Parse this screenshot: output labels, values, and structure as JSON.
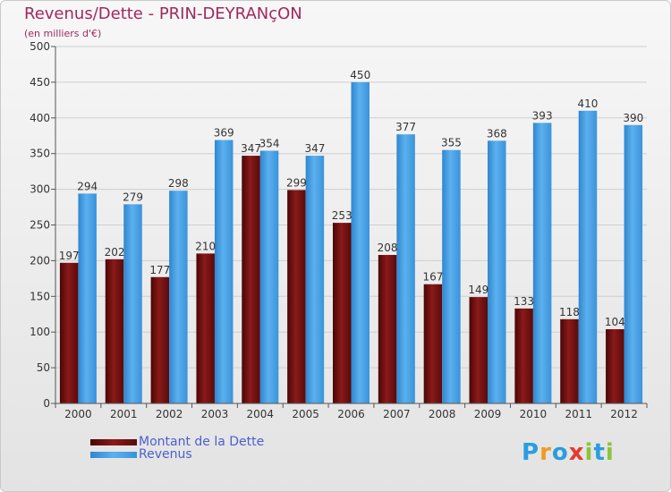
{
  "header": {
    "title": "Revenus/Dette - PRIN-DEYRANçON",
    "subtitle": "(en milliers d'€)"
  },
  "legend": {
    "items": [
      {
        "label": "Montant de la Dette",
        "color": "#6e1010"
      },
      {
        "label": "Revenus",
        "color": "#3e9ae2"
      }
    ]
  },
  "brand": {
    "text": "Proxiti",
    "letters": [
      {
        "ch": "P",
        "color": "#2a9de0"
      },
      {
        "ch": "r",
        "color": "#f29a1e"
      },
      {
        "ch": "o",
        "color": "#2a9de0"
      },
      {
        "ch": "x",
        "color": "#e63a2e"
      },
      {
        "ch": "i",
        "color": "#8cc43c"
      },
      {
        "ch": "t",
        "color": "#2a9de0"
      },
      {
        "ch": "i",
        "color": "#8cc43c"
      }
    ]
  },
  "chart_data": {
    "type": "bar",
    "title": "Revenus/Dette - PRIN-DEYRANçON",
    "subtitle": "(en milliers d'€)",
    "categories": [
      "2000",
      "2001",
      "2002",
      "2003",
      "2004",
      "2005",
      "2006",
      "2007",
      "2008",
      "2009",
      "2010",
      "2011",
      "2012"
    ],
    "series": [
      {
        "name": "Montant de la Dette",
        "color": "#6e1010",
        "values": [
          197,
          202,
          177,
          210,
          347,
          299,
          253,
          208,
          167,
          149,
          133,
          118,
          104
        ]
      },
      {
        "name": "Revenus",
        "color": "#3e9ae2",
        "values": [
          294,
          279,
          298,
          369,
          354,
          347,
          450,
          377,
          355,
          368,
          393,
          410,
          390
        ]
      }
    ],
    "ylim": [
      0,
      500
    ],
    "yticks": [
      0,
      50,
      100,
      150,
      200,
      250,
      300,
      350,
      400,
      450,
      500
    ],
    "grid": true,
    "legend_position": "bottom-left"
  }
}
